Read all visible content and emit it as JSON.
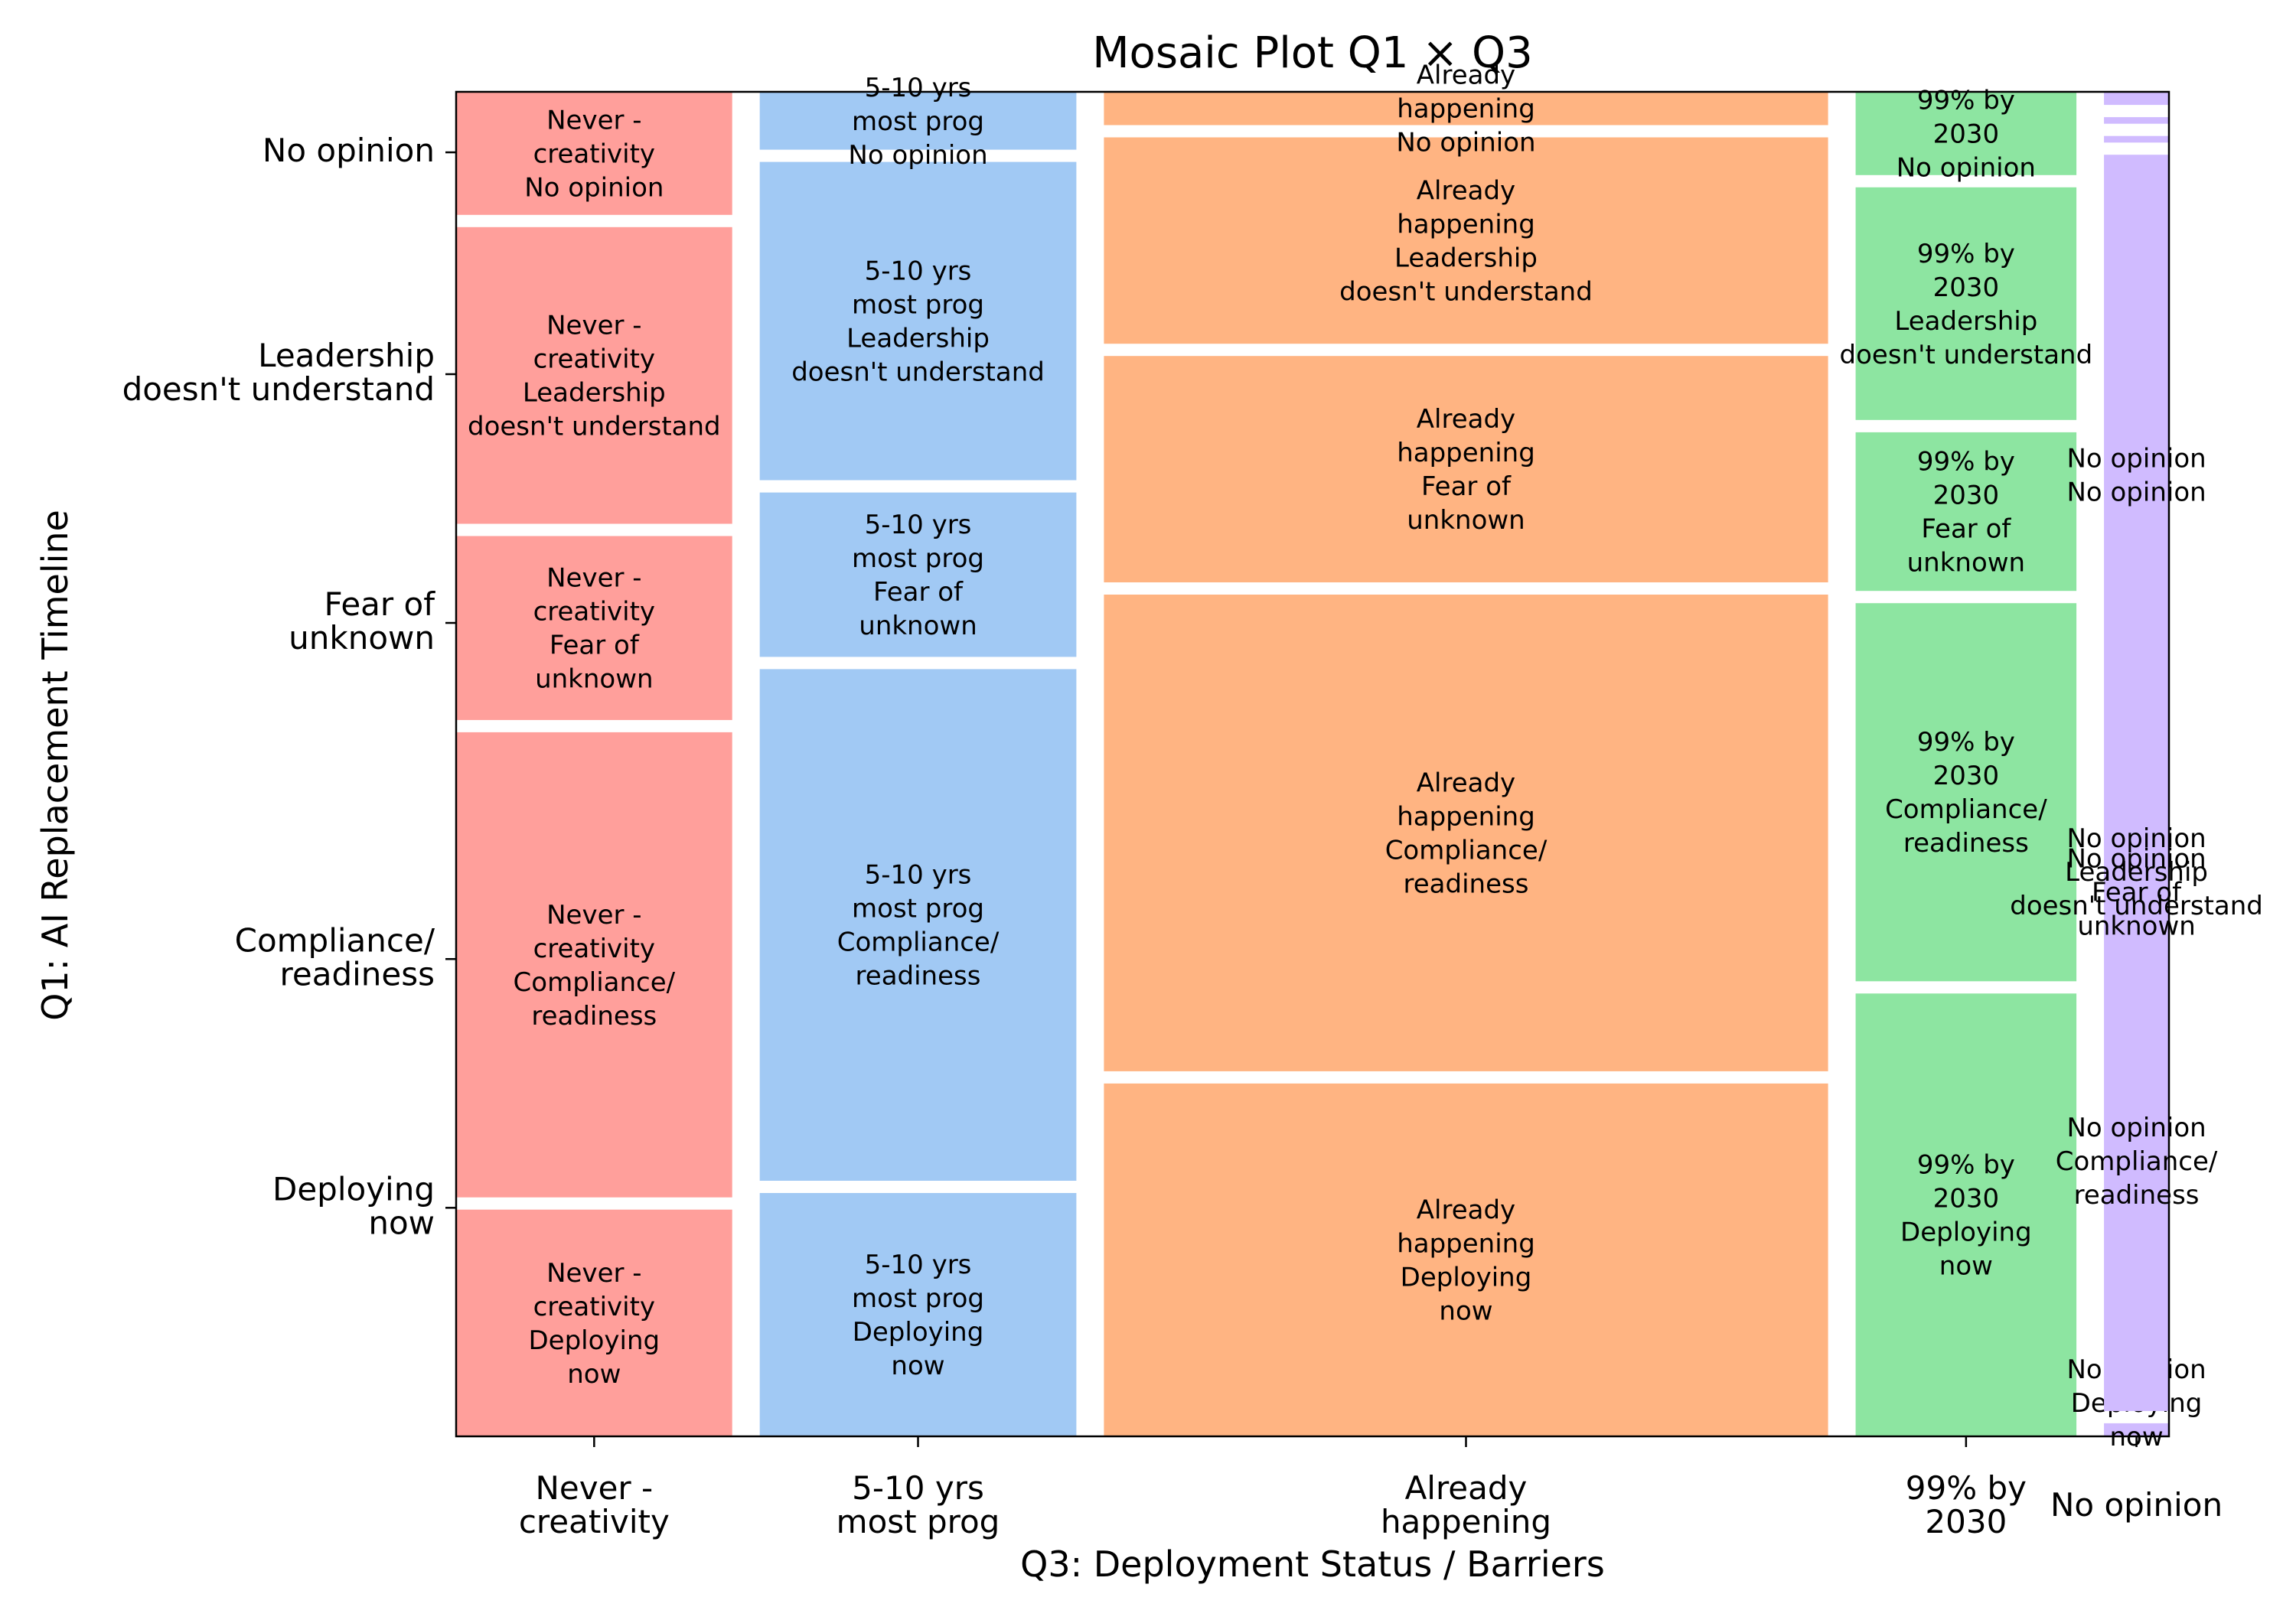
{
  "chart_data": {
    "type": "mosaic",
    "title": "Mosaic Plot Q1 × Q3",
    "xlabel": "Q3: Deployment Status / Barriers",
    "ylabel": "Q1: AI Replacement Timeline",
    "grid": false,
    "legend": "none",
    "columns": [
      {
        "name": "Never - creativity",
        "tick": [
          "Never -",
          "creativity"
        ],
        "share": 0.17,
        "color": "#ff9f9b",
        "fractions": {
          "Deploying now": 0.175,
          "Compliance/ readiness": 0.359,
          "Fear of unknown": 0.142,
          "Leadership doesn't understand": 0.229,
          "No opinion": 0.095
        }
      },
      {
        "name": "5-10 yrs most prog",
        "tick": [
          "5-10 yrs",
          "most prog"
        ],
        "share": 0.195,
        "color": "#a1c9f4",
        "fractions": {
          "Deploying now": 0.185,
          "Compliance/ readiness": 0.389,
          "Fear of unknown": 0.125,
          "Leadership doesn't understand": 0.242,
          "No opinion": 0.044
        }
      },
      {
        "name": "Already happening",
        "tick": [
          "Already",
          "happening"
        ],
        "share": 0.446,
        "color": "#ffb482",
        "fractions": {
          "Deploying now": 0.265,
          "Compliance/ readiness": 0.358,
          "Fear of unknown": 0.17,
          "Leadership doesn't understand": 0.155,
          "No opinion": 0.025
        }
      },
      {
        "name": "99% by 2030",
        "tick": [
          "99% by",
          "2030"
        ],
        "share": 0.136,
        "color": "#8de5a1",
        "fractions": {
          "Deploying now": 0.335,
          "Compliance/ readiness": 0.286,
          "Fear of unknown": 0.12,
          "Leadership doesn't understand": 0.176,
          "No opinion": 0.063
        }
      },
      {
        "name": "No opinion",
        "tick": [
          "No opinion"
        ],
        "share": 0.04,
        "color": "#d0bbff",
        "fractions": {
          "Deploying now": 0.01,
          "Compliance/ readiness": 0.96,
          "Fear of unknown": 0.005,
          "Leadership doesn't understand": 0.005,
          "No opinion": 0.01
        }
      }
    ],
    "rows": [
      {
        "name": "Deploying now",
        "lines": [
          "Deploying",
          "now"
        ],
        "tick": [
          "Deploying",
          "now"
        ],
        "tick_pos": 0.17
      },
      {
        "name": "Compliance/ readiness",
        "lines": [
          "Compliance/",
          "readiness"
        ],
        "tick": [
          "Compliance/",
          "readiness"
        ],
        "tick_pos": 0.355
      },
      {
        "name": "Fear of unknown",
        "lines": [
          "Fear of",
          "unknown"
        ],
        "tick": [
          "Fear of",
          "unknown"
        ],
        "tick_pos": 0.605
      },
      {
        "name": "Leadership doesn't understand",
        "lines": [
          "Leadership",
          "doesn't understand"
        ],
        "tick": [
          "Leadership",
          "doesn't understand"
        ],
        "tick_pos": 0.79
      },
      {
        "name": "No opinion",
        "lines": [
          "No opinion"
        ],
        "tick": [
          "No opinion"
        ],
        "tick_pos": 0.955
      }
    ],
    "column_tile_lines": [
      [
        "Never -",
        "creativity"
      ],
      [
        "5-10 yrs",
        "most prog"
      ],
      [
        "Already",
        "happening"
      ],
      [
        "99% by",
        "2030"
      ],
      [
        "No opinion"
      ]
    ],
    "label_placements": {
      "No opinion": {
        "Deploying now": 0.025,
        "Compliance/ readiness": 0.205,
        "Fear of unknown": 0.405,
        "Leadership doesn't understand": 0.42,
        "No opinion": 0.715
      }
    }
  }
}
